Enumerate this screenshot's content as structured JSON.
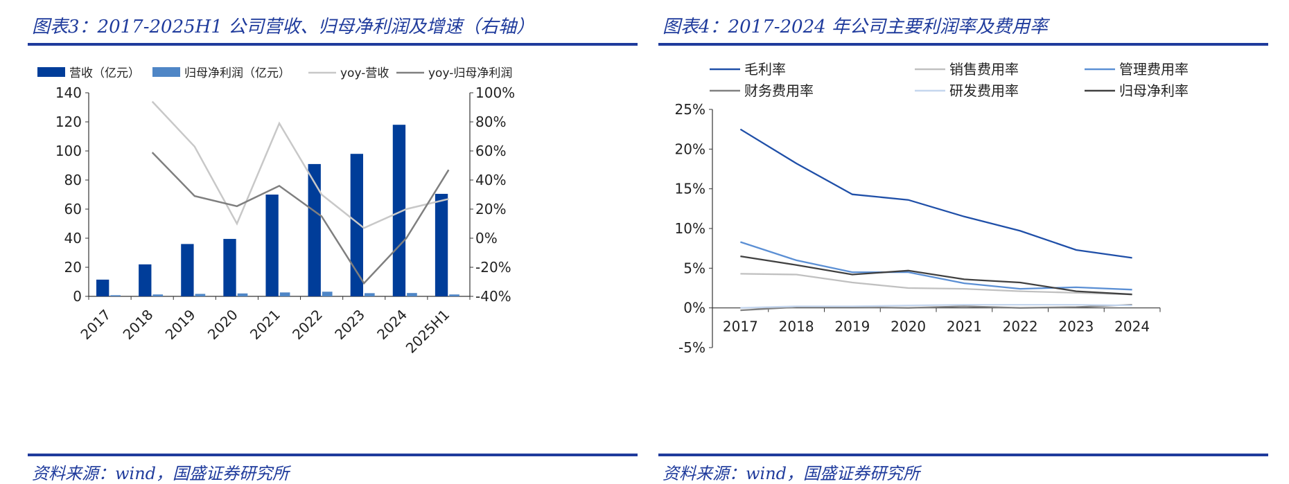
{
  "left": {
    "title": "图表3：2017-2025H1 公司营收、归母净利润及增速（右轴）",
    "source": "资料来源：wind，国盛证券研究所"
  },
  "right": {
    "title": "图表4：2017-2024 年公司主要利润率及费用率",
    "source": "资料来源：wind，国盛证券研究所"
  },
  "colors": {
    "revenue_bar": "#003d99",
    "profit_bar": "#4f86c6",
    "yoy_revenue": "#c8c8c8",
    "yoy_profit": "#7f7f7f",
    "gross_margin": "#1f4fa8",
    "selling": "#c0c0c0",
    "admin": "#5b8fd4",
    "finance": "#808080",
    "rnd": "#c5d6ee",
    "net_margin": "#404040",
    "accent": "#1f3b9c"
  },
  "chart_data": [
    {
      "type": "bar",
      "title": "图表3：2017-2025H1 公司营收、归母净利润及增速（右轴）",
      "categories": [
        "2017",
        "2018",
        "2019",
        "2020",
        "2021",
        "2022",
        "2023",
        "2024",
        "2025H1"
      ],
      "ylim_left": [
        0,
        140
      ],
      "yticks_left": [
        "0",
        "20",
        "40",
        "60",
        "80",
        "100",
        "120",
        "140"
      ],
      "ylim_right": [
        -40,
        100
      ],
      "yticks_right": [
        "-40%",
        "-20%",
        "0%",
        "20%",
        "40%",
        "60%",
        "80%",
        "100%"
      ],
      "series": [
        {
          "name": "营收（亿元）",
          "kind": "bar",
          "axis": "left",
          "values": [
            11.5,
            22,
            36,
            39.5,
            70,
            91,
            98,
            118,
            70.5
          ]
        },
        {
          "name": "归母净利润（亿元）",
          "kind": "bar",
          "axis": "left",
          "values": [
            0.8,
            1.3,
            1.7,
            2.0,
            2.7,
            3.2,
            2.2,
            2.3,
            1.3
          ]
        },
        {
          "name": "yoy-营收",
          "kind": "line",
          "axis": "right",
          "values": [
            null,
            94,
            63,
            10,
            79,
            30,
            7,
            20,
            27
          ]
        },
        {
          "name": "yoy-归母净利润",
          "kind": "line",
          "axis": "right",
          "values": [
            null,
            59,
            29,
            22,
            36,
            15,
            -31,
            0,
            47
          ]
        }
      ]
    },
    {
      "type": "line",
      "title": "图表4：2017-2024 年公司主要利润率及费用率",
      "categories": [
        "2017",
        "2018",
        "2019",
        "2020",
        "2021",
        "2022",
        "2023",
        "2024"
      ],
      "ylim": [
        -5,
        25
      ],
      "yticks": [
        "-5%",
        "0%",
        "5%",
        "10%",
        "15%",
        "20%",
        "25%"
      ],
      "series": [
        {
          "name": "毛利率",
          "values": [
            22.5,
            18.2,
            14.3,
            13.6,
            11.5,
            9.7,
            7.3,
            6.3
          ]
        },
        {
          "name": "销售费用率",
          "values": [
            4.3,
            4.2,
            3.2,
            2.5,
            2.4,
            2.1,
            1.9,
            1.7
          ]
        },
        {
          "name": "管理费用率",
          "values": [
            8.3,
            6.0,
            4.5,
            4.5,
            3.1,
            2.4,
            2.6,
            2.3
          ]
        },
        {
          "name": "财务费用率",
          "values": [
            -0.3,
            0.1,
            0.1,
            0.0,
            0.2,
            0.0,
            0.1,
            0.4
          ]
        },
        {
          "name": "研发费用率",
          "values": [
            0.0,
            0.2,
            0.2,
            0.3,
            0.4,
            0.4,
            0.4,
            0.3
          ]
        },
        {
          "name": "归母净利率",
          "values": [
            6.5,
            5.4,
            4.2,
            4.7,
            3.6,
            3.2,
            2.1,
            1.7
          ]
        }
      ]
    }
  ]
}
